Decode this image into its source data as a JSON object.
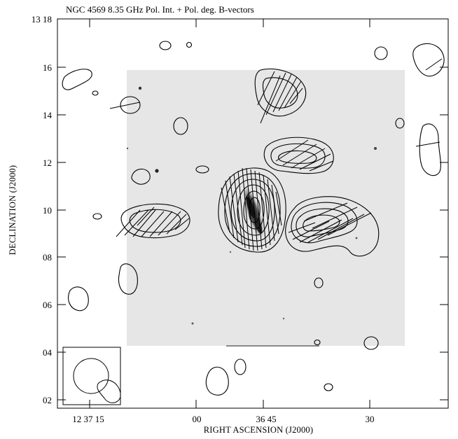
{
  "figure": {
    "title": "NGC 4569  8.35 GHz Pol. Int. + Pol. deg. B-vectors",
    "x_label": "RIGHT ASCENSION (J2000)",
    "y_label": "DECLINATION (J2000)",
    "x_ticks": [
      "12 37 15",
      "00",
      "36 45",
      "30"
    ],
    "y_ticks": [
      "13 18",
      "16",
      "14",
      "12",
      "10",
      "08",
      "06",
      "04",
      "02"
    ]
  }
}
